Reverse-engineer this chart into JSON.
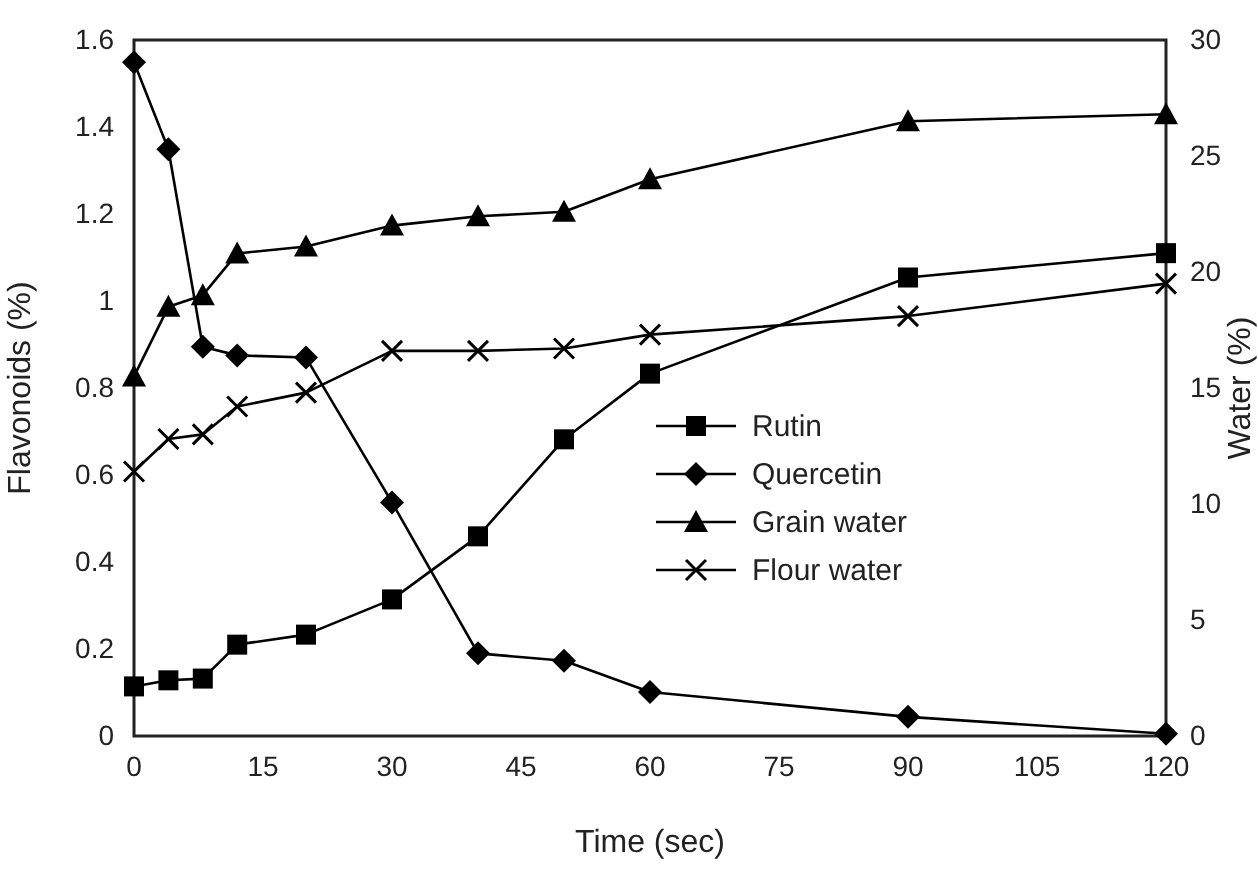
{
  "chart_data": {
    "type": "line",
    "xlabel": "Time (sec)",
    "ylabel": "Flavonoids  (%)",
    "y2label": "Water  (%)",
    "x": [
      0,
      4,
      8,
      12,
      20,
      30,
      40,
      50,
      60,
      90,
      120
    ],
    "xlim": [
      0,
      120
    ],
    "xticks": [
      0,
      15,
      30,
      45,
      60,
      75,
      90,
      105,
      120
    ],
    "ylim": [
      0,
      1.6
    ],
    "yticks": [
      0,
      0.2,
      0.4,
      0.6,
      0.8,
      1,
      1.2,
      1.4,
      1.6
    ],
    "y2lim": [
      0,
      30
    ],
    "y2ticks": [
      0,
      5,
      10,
      15,
      20,
      25,
      30
    ],
    "grid": false,
    "legend": "right",
    "line_style": "solid",
    "series": [
      {
        "name": "Rutin",
        "color": "#000000",
        "marker": "square",
        "values": [
          0.114,
          0.128,
          0.132,
          0.21,
          0.233,
          0.314,
          0.459,
          0.682,
          0.833,
          1.054,
          1.11
        ]
      },
      {
        "name": "Quercetin",
        "color": "#000000",
        "marker": "diamond",
        "values": [
          1.549,
          1.349,
          0.895,
          0.875,
          0.87,
          0.537,
          0.19,
          0.173,
          0.101,
          0.044,
          0.005
        ]
      },
      {
        "name": "Grain water",
        "color": "#000000",
        "marker": "triangle",
        "axis": "y2",
        "values": [
          15.5,
          18.5,
          19.0,
          20.8,
          21.1,
          22.0,
          22.4,
          22.6,
          24.0,
          26.5,
          26.8
        ]
      },
      {
        "name": "Flour water",
        "color": "#000000",
        "marker": "cross",
        "axis": "y2",
        "values": [
          11.4,
          12.8,
          13.0,
          14.2,
          14.8,
          16.6,
          16.6,
          16.7,
          17.3,
          18.1,
          19.5
        ]
      }
    ]
  }
}
